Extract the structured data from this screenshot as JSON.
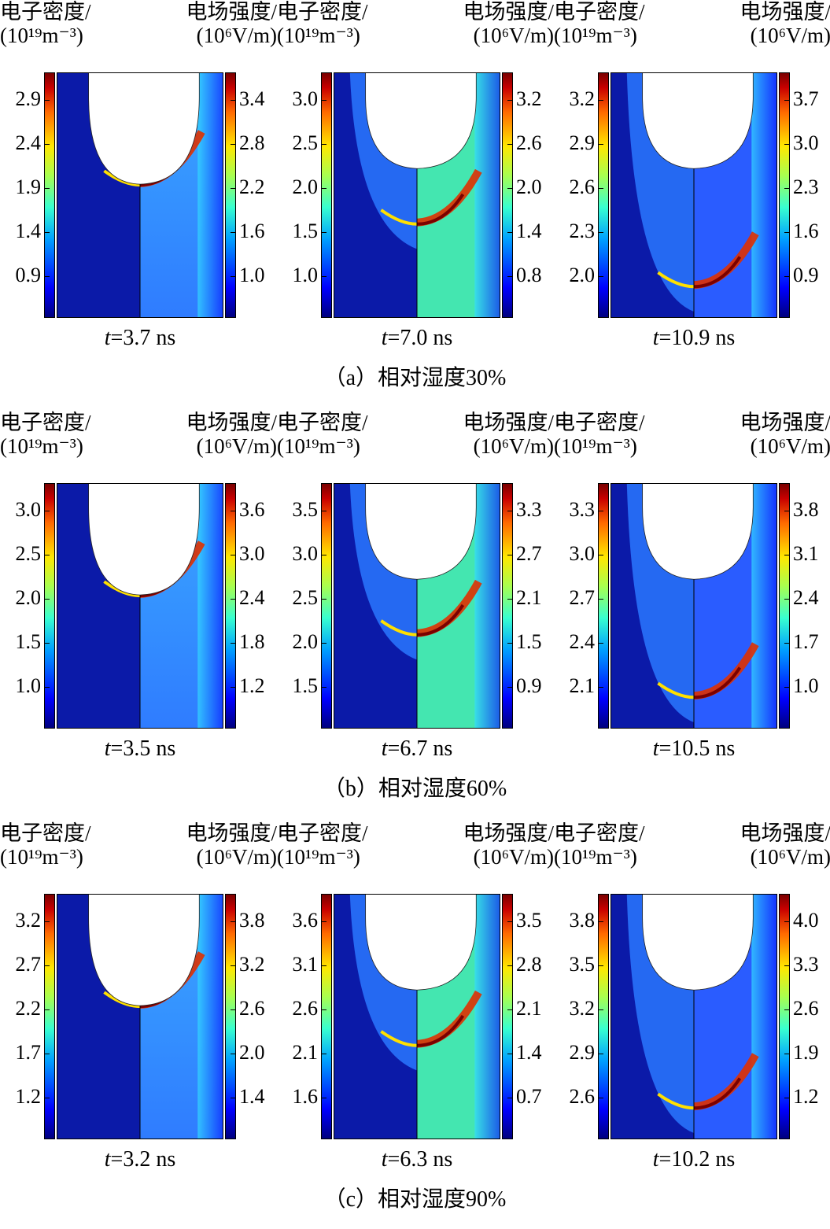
{
  "header": {
    "left_title": "电子密度/",
    "left_unit": "(10¹⁹m⁻³)",
    "right_title": "电场强度/",
    "right_unit": "(10⁶V/m)"
  },
  "rows": [
    {
      "caption": "（a）相对湿度30%",
      "panels": [
        {
          "time_var": "t",
          "time_value": "=3.7 ns",
          "left_ticks": [
            "2.9",
            "2.4",
            "1.9",
            "1.4",
            "0.9"
          ],
          "right_ticks": [
            "3.4",
            "2.8",
            "2.2",
            "1.6",
            "1.0"
          ],
          "stage": 1
        },
        {
          "time_var": "t",
          "time_value": "=7.0 ns",
          "left_ticks": [
            "3.0",
            "2.5",
            "2.0",
            "1.5",
            "1.0"
          ],
          "right_ticks": [
            "3.2",
            "2.6",
            "2.0",
            "1.4",
            "0.8"
          ],
          "stage": 2
        },
        {
          "time_var": "t",
          "time_value": "=10.9 ns",
          "left_ticks": [
            "3.2",
            "2.9",
            "2.6",
            "2.3",
            "2.0"
          ],
          "right_ticks": [
            "3.7",
            "3.0",
            "2.3",
            "1.6",
            "0.9"
          ],
          "stage": 3
        }
      ]
    },
    {
      "caption": "（b）相对湿度60%",
      "panels": [
        {
          "time_var": "t",
          "time_value": "=3.5 ns",
          "left_ticks": [
            "3.0",
            "2.5",
            "2.0",
            "1.5",
            "1.0"
          ],
          "right_ticks": [
            "3.6",
            "3.0",
            "2.4",
            "1.8",
            "1.2"
          ],
          "stage": 1
        },
        {
          "time_var": "t",
          "time_value": "=6.7 ns",
          "left_ticks": [
            "3.5",
            "3.0",
            "2.5",
            "2.0",
            "1.5"
          ],
          "right_ticks": [
            "3.3",
            "2.7",
            "2.1",
            "1.5",
            "0.9"
          ],
          "stage": 2
        },
        {
          "time_var": "t",
          "time_value": "=10.5 ns",
          "left_ticks": [
            "3.3",
            "3.0",
            "2.7",
            "2.4",
            "2.1"
          ],
          "right_ticks": [
            "3.8",
            "3.1",
            "2.4",
            "1.7",
            "1.0"
          ],
          "stage": 3
        }
      ]
    },
    {
      "caption": "（c）相对湿度90%",
      "panels": [
        {
          "time_var": "t",
          "time_value": "=3.2 ns",
          "left_ticks": [
            "3.2",
            "2.7",
            "2.2",
            "1.7",
            "1.2"
          ],
          "right_ticks": [
            "3.8",
            "3.2",
            "2.6",
            "2.0",
            "1.4"
          ],
          "stage": 1
        },
        {
          "time_var": "t",
          "time_value": "=6.3 ns",
          "left_ticks": [
            "3.6",
            "3.1",
            "2.6",
            "2.1",
            "1.6"
          ],
          "right_ticks": [
            "3.5",
            "2.8",
            "2.1",
            "1.4",
            "0.7"
          ],
          "stage": 2
        },
        {
          "time_var": "t",
          "time_value": "=10.2 ns",
          "left_ticks": [
            "3.8",
            "3.5",
            "3.2",
            "2.9",
            "2.6"
          ],
          "right_ticks": [
            "4.0",
            "3.3",
            "2.6",
            "1.9",
            "1.2"
          ],
          "stage": 3
        }
      ]
    }
  ]
}
